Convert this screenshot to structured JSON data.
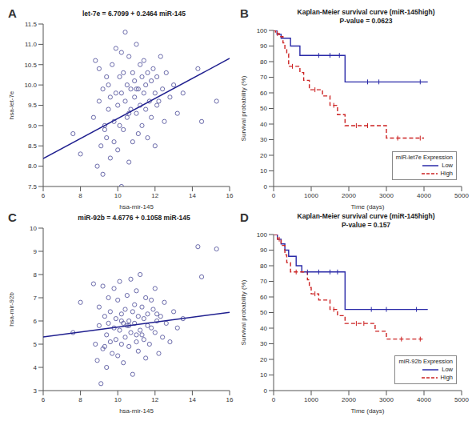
{
  "chart_data": [
    {
      "type": "scatter",
      "annotation": "A",
      "title": "let-7e = 6.7099 + 0.2464  miR-145",
      "x_label": "hsa-mir-145",
      "y_label": "hsa-let-7e",
      "xlim": [
        6,
        16
      ],
      "xticks": [
        6,
        8,
        10,
        12,
        14,
        16
      ],
      "ylim": [
        7.5,
        11.5
      ],
      "yticks": [
        7.5,
        {
          "value": 8,
          "label": "8.0"
        },
        8.5,
        {
          "value": 9,
          "label": "9.0"
        },
        9.5,
        {
          "value": 10,
          "label": "10.0"
        },
        10.5,
        {
          "value": 11,
          "label": "11.0"
        },
        11.5
      ],
      "grid": false,
      "series": [
        {
          "type": "scatter",
          "marker": "open_circle",
          "color": "#5a5aa0",
          "x": [
            7.6,
            8.0,
            8.7,
            8.8,
            8.9,
            9.0,
            9.0,
            9.1,
            9.2,
            9.2,
            9.3,
            9.4,
            9.4,
            9.5,
            9.5,
            9.6,
            9.6,
            9.7,
            9.8,
            9.8,
            9.9,
            9.9,
            10.0,
            10.0,
            10.1,
            10.1,
            10.2,
            10.2,
            10.3,
            10.3,
            10.4,
            10.4,
            10.5,
            10.5,
            10.6,
            10.6,
            10.7,
            10.7,
            10.8,
            10.8,
            10.9,
            10.9,
            11.0,
            11.0,
            11.1,
            11.1,
            11.2,
            11.2,
            11.3,
            11.3,
            11.4,
            11.4,
            11.5,
            11.5,
            11.6,
            11.6,
            11.7,
            11.8,
            11.8,
            11.9,
            12.0,
            12.0,
            12.1,
            12.2,
            12.3,
            12.4,
            12.5,
            12.6,
            12.8,
            13.0,
            13.2,
            13.5,
            14.3,
            14.5,
            15.3,
            10.2,
            11.0,
            9.3,
            12.1,
            10.6
          ],
          "values": [
            8.8,
            8.3,
            9.2,
            10.6,
            8.0,
            9.6,
            10.4,
            8.5,
            9.9,
            7.8,
            9.0,
            10.2,
            8.7,
            9.4,
            10.0,
            8.2,
            9.7,
            10.5,
            9.1,
            8.6,
            9.8,
            10.9,
            8.4,
            9.5,
            10.2,
            9.0,
            7.5,
            9.8,
            10.3,
            8.9,
            9.6,
            11.3,
            9.2,
            10.0,
            8.1,
            10.7,
            9.4,
            9.9,
            10.3,
            8.6,
            9.7,
            10.1,
            9.3,
            11.0,
            9.9,
            8.8,
            10.5,
            9.5,
            10.2,
            9.0,
            9.8,
            10.6,
            9.4,
            10.0,
            8.7,
            10.3,
            9.6,
            10.1,
            9.2,
            10.4,
            9.8,
            8.5,
            10.2,
            9.6,
            10.7,
            9.9,
            9.1,
            10.3,
            9.7,
            10.0,
            9.3,
            9.8,
            10.4,
            9.1,
            9.6,
            10.8,
            9.9,
            8.9,
            9.5,
            9.3
          ]
        },
        {
          "type": "line",
          "line_style": "solid",
          "color": "#1f1f8f",
          "x": [
            6,
            16
          ],
          "values": [
            8.1883,
            10.6523
          ]
        }
      ]
    },
    {
      "type": "step",
      "annotation": "B",
      "title": "Kaplan-Meier survival curve (miR-145high)",
      "subtitle": "P-value = 0.0623",
      "x_label": "Time (days)",
      "y_label": "Survival probability (%)",
      "xlim": [
        0,
        5000
      ],
      "xticks": [
        0,
        1000,
        2000,
        3000,
        4000,
        5000
      ],
      "ylim": [
        0,
        100
      ],
      "yticks": [
        0,
        10,
        20,
        30,
        40,
        50,
        60,
        70,
        80,
        90,
        100
      ],
      "grid": false,
      "legend": "lower right",
      "legend_title": "miR-let7e Expression",
      "series": [
        {
          "name": "Low",
          "color": "#2a2aa8",
          "line_style": "solid",
          "x": [
            0,
            90,
            200,
            450,
            700,
            1900,
            4100
          ],
          "values": [
            100,
            97.5,
            95,
            90,
            84,
            67,
            67
          ],
          "censored_x": [
            1200,
            1500,
            1750,
            2500,
            2800,
            3900
          ],
          "censored_y": [
            84,
            84,
            84,
            67,
            67,
            67
          ]
        },
        {
          "name": "High",
          "color": "#cc2222",
          "line_style": "dashed",
          "x": [
            0,
            50,
            150,
            250,
            300,
            350,
            400,
            700,
            800,
            950,
            1300,
            1500,
            1700,
            1900,
            3000,
            4000
          ],
          "values": [
            100,
            98,
            96,
            92,
            88,
            85,
            77,
            73,
            68,
            62,
            58,
            52,
            46,
            39,
            31,
            31
          ],
          "censored_x": [
            100,
            500,
            1100,
            1600,
            2200,
            2500,
            3300,
            3900
          ],
          "censored_y": [
            98,
            77,
            62,
            52,
            39,
            39,
            31,
            31
          ]
        }
      ]
    },
    {
      "type": "scatter",
      "annotation": "C",
      "title": "miR-92b = 4.6776 + 0.1058  miR-145",
      "x_label": "hsa-mir-145",
      "y_label": "hsa-mir-92b",
      "xlim": [
        6,
        16
      ],
      "xticks": [
        6,
        8,
        10,
        12,
        14,
        16
      ],
      "ylim": [
        3,
        10
      ],
      "yticks": [
        3,
        4,
        5,
        6,
        7,
        8,
        9,
        10
      ],
      "grid": false,
      "series": [
        {
          "type": "scatter",
          "marker": "open_circle",
          "color": "#5a5aa0",
          "x": [
            7.6,
            8.0,
            8.7,
            8.8,
            8.9,
            9.0,
            9.0,
            9.1,
            9.2,
            9.2,
            9.3,
            9.4,
            9.4,
            9.5,
            9.5,
            9.6,
            9.6,
            9.7,
            9.8,
            9.8,
            9.9,
            9.9,
            10.0,
            10.0,
            10.1,
            10.1,
            10.2,
            10.2,
            10.3,
            10.3,
            10.4,
            10.4,
            10.5,
            10.5,
            10.6,
            10.6,
            10.7,
            10.7,
            10.8,
            10.8,
            10.9,
            10.9,
            11.0,
            11.0,
            11.1,
            11.1,
            11.2,
            11.2,
            11.3,
            11.3,
            11.4,
            11.4,
            11.5,
            11.5,
            11.6,
            11.6,
            11.7,
            11.8,
            11.8,
            11.9,
            12.0,
            12.0,
            12.1,
            12.2,
            12.3,
            12.4,
            12.5,
            12.6,
            12.8,
            13.0,
            13.2,
            13.5,
            14.3,
            14.5,
            15.3,
            10.2,
            11.0,
            9.3,
            12.1,
            10.6
          ],
          "values": [
            5.5,
            6.8,
            7.6,
            5.0,
            4.3,
            6.6,
            5.8,
            3.3,
            7.5,
            4.8,
            6.2,
            5.4,
            4.0,
            7.0,
            5.9,
            6.4,
            5.1,
            4.6,
            7.4,
            5.7,
            6.1,
            5.2,
            4.5,
            6.9,
            5.6,
            7.7,
            5.0,
            6.3,
            5.9,
            4.2,
            6.5,
            5.3,
            7.1,
            5.8,
            4.9,
            6.0,
            7.8,
            5.5,
            6.4,
            3.7,
            5.9,
            6.7,
            5.1,
            7.3,
            4.7,
            6.2,
            5.6,
            8.0,
            5.4,
            6.6,
            5.2,
            6.1,
            4.4,
            7.0,
            5.8,
            6.3,
            5.0,
            6.9,
            5.7,
            6.5,
            5.5,
            7.4,
            6.0,
            4.6,
            6.2,
            5.3,
            6.8,
            5.9,
            5.1,
            6.4,
            5.7,
            6.1,
            9.2,
            7.9,
            9.1,
            6.0,
            5.4,
            4.9,
            6.3,
            5.8
          ]
        },
        {
          "type": "line",
          "line_style": "solid",
          "color": "#1f1f8f",
          "x": [
            6,
            16
          ],
          "values": [
            5.3124,
            6.3704
          ]
        }
      ]
    },
    {
      "type": "step",
      "annotation": "D",
      "title": "Kaplan-Meier survival curve (miR-145high)",
      "subtitle": "P-value = 0.157",
      "x_label": "Time (days)",
      "y_label": "Survival probability (%)",
      "xlim": [
        0,
        5000
      ],
      "xticks": [
        0,
        1000,
        2000,
        3000,
        4000,
        5000
      ],
      "ylim": [
        0,
        100
      ],
      "yticks": [
        0,
        10,
        20,
        30,
        40,
        50,
        60,
        70,
        80,
        90,
        100
      ],
      "grid": false,
      "legend": "lower right",
      "legend_title": "miR-92b Expression",
      "series": [
        {
          "name": "Low",
          "color": "#2a2aa8",
          "line_style": "solid",
          "x": [
            0,
            100,
            200,
            300,
            400,
            600,
            750,
            1900,
            4100
          ],
          "values": [
            100,
            97,
            94,
            90,
            86,
            80,
            76,
            52,
            52
          ],
          "censored_x": [
            900,
            1200,
            1500,
            1700,
            2600,
            3000,
            3800
          ],
          "censored_y": [
            76,
            76,
            76,
            76,
            52,
            52,
            52
          ]
        },
        {
          "name": "High",
          "color": "#cc2222",
          "line_style": "dashed",
          "x": [
            0,
            100,
            200,
            300,
            350,
            450,
            900,
            950,
            1000,
            1200,
            1500,
            1700,
            1900,
            2700,
            3000,
            4000
          ],
          "values": [
            100,
            97,
            93,
            87,
            82,
            76,
            71,
            66,
            62,
            58,
            52,
            48,
            43,
            38,
            33,
            33
          ],
          "censored_x": [
            150,
            600,
            1100,
            1600,
            2200,
            2400,
            3400,
            3900
          ],
          "censored_y": [
            97,
            76,
            62,
            52,
            43,
            43,
            33,
            33
          ]
        }
      ]
    }
  ]
}
